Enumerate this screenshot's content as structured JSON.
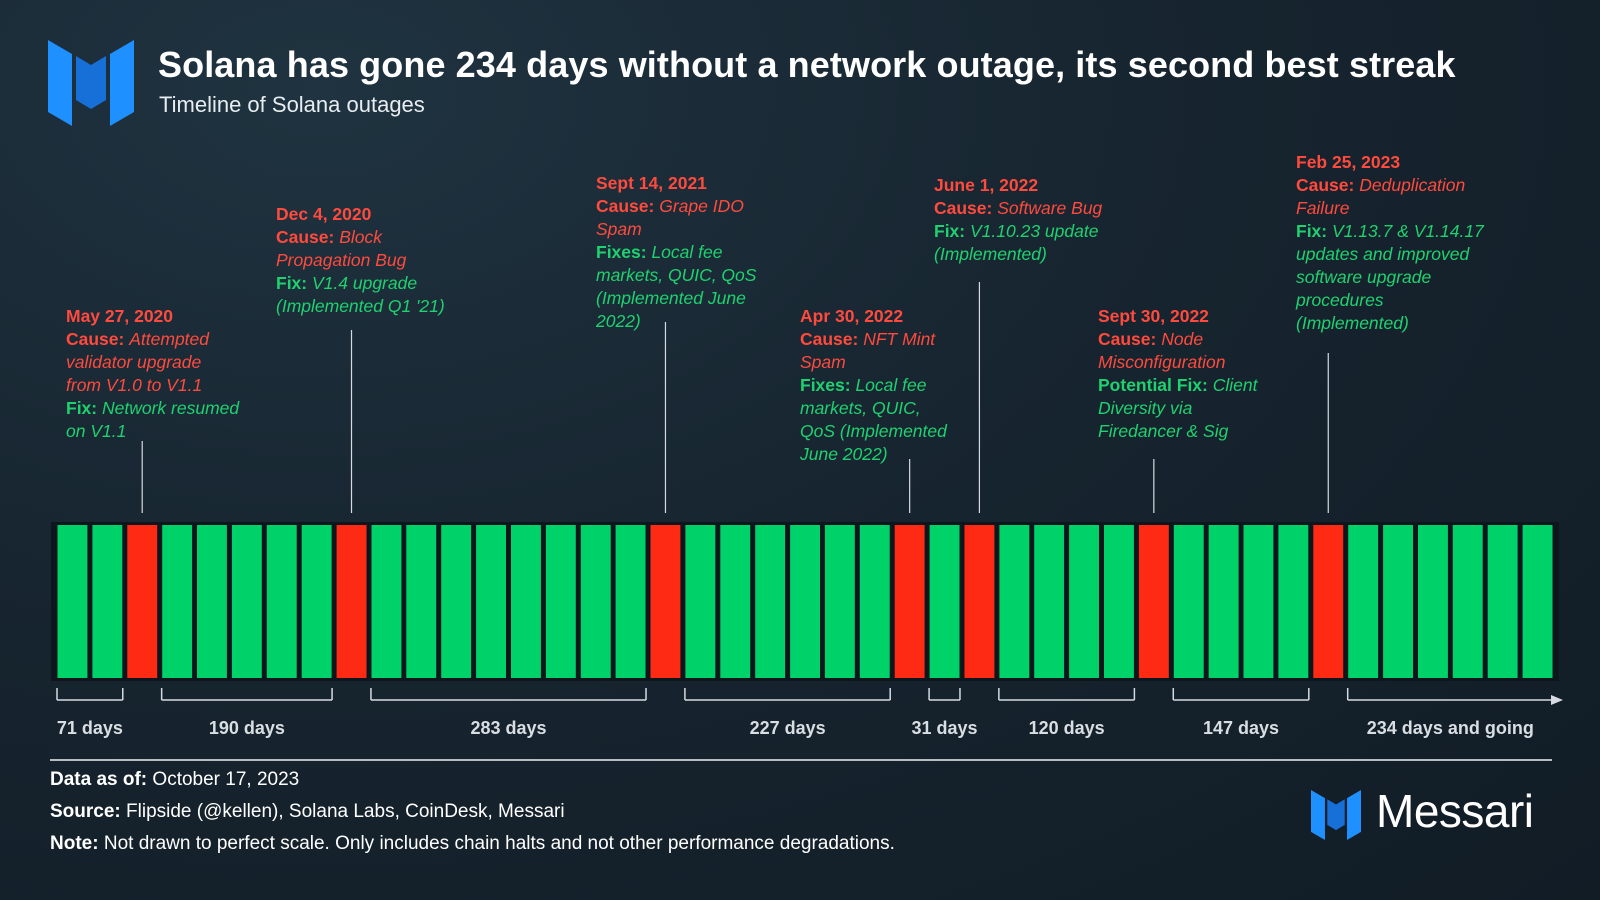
{
  "header": {
    "title": "Solana has gone 234 days without a network outage, its second best streak",
    "subtitle": "Timeline of Solana outages"
  },
  "colors": {
    "healthy": "#00d26a",
    "outage": "#ff2a14",
    "cause_text": "#ff4a3d",
    "fix_text": "#1fd16f",
    "logo_blue": "#1d8bf0"
  },
  "chart_data": {
    "type": "bar",
    "title": "Timeline of Solana outages",
    "segments": [
      "green",
      "green",
      "red",
      "green",
      "green",
      "green",
      "green",
      "green",
      "red",
      "green",
      "green",
      "green",
      "green",
      "green",
      "green",
      "green",
      "green",
      "red",
      "green",
      "green",
      "green",
      "green",
      "green",
      "green",
      "red",
      "green",
      "red",
      "green",
      "green",
      "green",
      "green",
      "red",
      "green",
      "green",
      "green",
      "green",
      "red",
      "green",
      "green",
      "green",
      "green",
      "green",
      "green"
    ],
    "streaks": [
      {
        "days": 71,
        "label": "71 days"
      },
      {
        "days": 190,
        "label": "190 days"
      },
      {
        "days": 283,
        "label": "283 days"
      },
      {
        "days": 227,
        "label": "227 days"
      },
      {
        "days": 31,
        "label": "31 days"
      },
      {
        "days": 120,
        "label": "120 days"
      },
      {
        "days": 147,
        "label": "147 days"
      },
      {
        "days": 234,
        "label": "234 days and going"
      }
    ],
    "outages": [
      {
        "date": "May 27, 2020",
        "cause_label": "Cause:",
        "cause": "Attempted validator upgrade from V1.0 to V1.1",
        "fix_label": "Fix:",
        "fix": "Network resumed on V1.1"
      },
      {
        "date": "Dec 4, 2020",
        "cause_label": "Cause:",
        "cause": "Block Propagation Bug",
        "fix_label": "Fix:",
        "fix": "V1.4 upgrade (Implemented Q1 '21)"
      },
      {
        "date": "Sept 14, 2021",
        "cause_label": "Cause:",
        "cause": "Grape IDO Spam",
        "fix_label": "Fixes:",
        "fix": "Local fee markets, QUIC, QoS (Implemented June 2022)"
      },
      {
        "date": "Apr 30, 2022",
        "cause_label": "Cause:",
        "cause": "NFT Mint Spam",
        "fix_label": "Fixes:",
        "fix": "Local fee markets, QUIC, QoS (Implemented June 2022)"
      },
      {
        "date": "June 1, 2022",
        "cause_label": "Cause:",
        "cause": "Software Bug",
        "fix_label": "Fix:",
        "fix": "V1.10.23 update (Implemented)"
      },
      {
        "date": "Sept 30, 2022",
        "cause_label": "Cause:",
        "cause": "Node Misconfiguration",
        "fix_label": "Potential Fix:",
        "fix": "Client Diversity via Firedancer & Sig"
      },
      {
        "date": "Feb 25, 2023",
        "cause_label": "Cause:",
        "cause": "Deduplication Failure",
        "fix_label": "Fix:",
        "fix": "V1.13.7 & V1.14.17 updates and improved software upgrade procedures (Implemented)"
      }
    ]
  },
  "annotations_text": {
    "a0": {
      "date": "May 27, 2020",
      "l1": "Attempted",
      "l2": "validator upgrade",
      "l3": "from V1.0 to V1.1",
      "l4": "Network resumed",
      "l5": "on V1.1"
    },
    "a1": {
      "date": "Dec 4, 2020",
      "l1": "Block",
      "l2": "Propagation Bug",
      "l3": "V1.4 upgrade",
      "l4": "(Implemented Q1 '21)"
    },
    "a2": {
      "date": "Sept 14, 2021",
      "l1": "Grape IDO",
      "l2": "Spam",
      "l3": "Local fee",
      "l4": "markets, QUIC, QoS",
      "l5": "(Implemented June",
      "l6": "2022)"
    },
    "a3": {
      "date": "Apr 30, 2022",
      "l1": "NFT Mint",
      "l2": "Spam",
      "l3": "Local fee",
      "l4": "markets, QUIC,",
      "l5": "QoS (Implemented",
      "l6": "June 2022)"
    },
    "a4": {
      "date": "June 1, 2022",
      "l1": "Software Bug",
      "l2": "V1.10.23 update",
      "l3": "(Implemented)"
    },
    "a5": {
      "date": "Sept 30, 2022",
      "l1": "Node",
      "l2": "Misconfiguration",
      "l3": "Client",
      "l4": "Diversity via",
      "l5": "Firedancer & Sig"
    },
    "a6": {
      "date": "Feb 25, 2023",
      "l1": "Deduplication",
      "l2": "Failure",
      "l3": "V1.13.7 & V1.14.17",
      "l4": "updates and improved",
      "l5": "software upgrade",
      "l6": "procedures",
      "l7": "(Implemented)"
    }
  },
  "labels": {
    "cause": "Cause:",
    "fix": "Fix:",
    "fixes": "Fixes:",
    "potential_fix": "Potential Fix:"
  },
  "footer": {
    "data_label": "Data as of:",
    "data_value": "October 17, 2023",
    "source_label": "Source:",
    "source_value": "Flipside (@kellen), Solana Labs, CoinDesk, Messari",
    "note_label": "Note:",
    "note_value": "Not drawn to perfect scale. Only includes chain halts and not other performance degradations."
  },
  "brand": {
    "name": "Messari"
  }
}
